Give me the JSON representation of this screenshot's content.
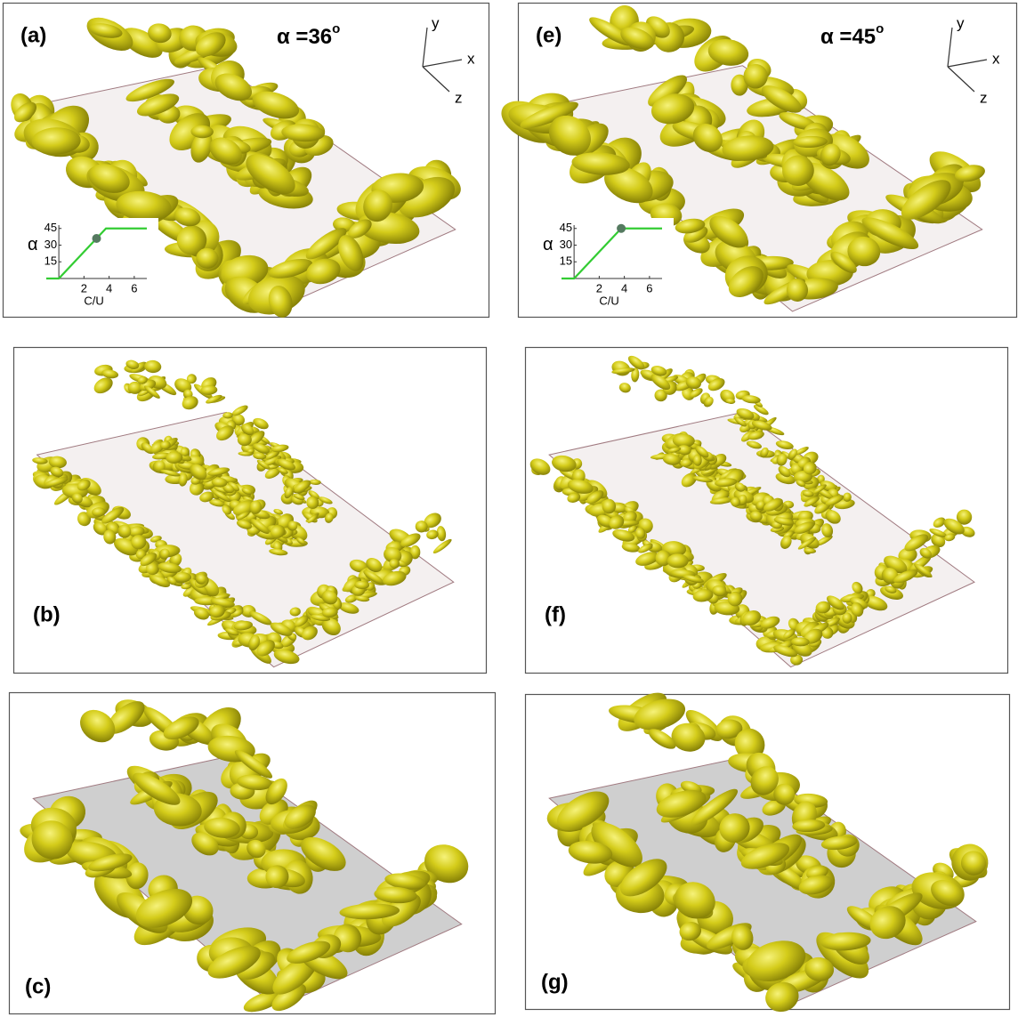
{
  "panels": [
    {
      "label": "(a)",
      "alpha": {
        "text": "α =36",
        "sup": "o"
      },
      "axes": {
        "y": "y",
        "x": "x",
        "z": "z"
      },
      "inset": {
        "type": "line",
        "ylabel": "α",
        "xlabel": "C/U",
        "xlim": [
          -1,
          7
        ],
        "ylim": [
          0,
          48
        ],
        "xticks": [
          2,
          4,
          6
        ],
        "yticks": [
          15,
          30,
          45
        ],
        "x": [
          -1,
          0,
          3.75,
          7
        ],
        "values": [
          0,
          0,
          45,
          45
        ],
        "color": "#33cc33",
        "marker": {
          "x": 3,
          "y": 36,
          "color": "#557a60"
        }
      }
    },
    {
      "label": "(e)",
      "alpha": {
        "text": "α =45",
        "sup": "o"
      },
      "axes": {
        "y": "y",
        "x": "x",
        "z": "z"
      },
      "inset": {
        "type": "line",
        "ylabel": "α",
        "xlabel": "C/U",
        "xlim": [
          -1,
          7
        ],
        "ylim": [
          0,
          48
        ],
        "xticks": [
          2,
          4,
          6
        ],
        "yticks": [
          15,
          30,
          45
        ],
        "x": [
          -1,
          0,
          3.75,
          7
        ],
        "values": [
          0,
          0,
          45,
          45
        ],
        "color": "#33cc33",
        "marker": {
          "x": 3.75,
          "y": 45,
          "color": "#557a60"
        }
      }
    },
    {
      "label": "(b)"
    },
    {
      "label": "(f)"
    },
    {
      "label": "(c)"
    },
    {
      "label": "(g)"
    }
  ]
}
